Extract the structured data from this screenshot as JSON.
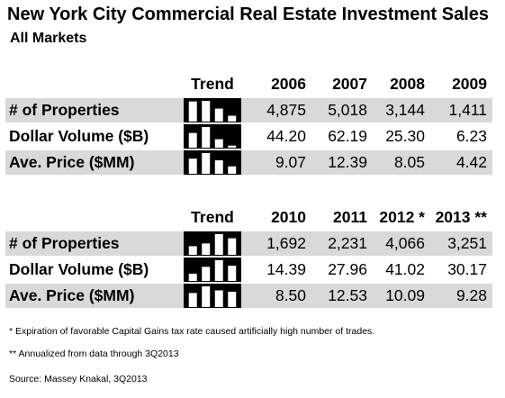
{
  "title": "New York City Commercial Real Estate Investment Sales",
  "subtitle": "All Markets",
  "tables": [
    {
      "trend_label": "Trend",
      "years": [
        "2006",
        "2007",
        "2008",
        "2009"
      ],
      "rows": [
        {
          "label": "# of Properties",
          "values": [
            "4,875",
            "5,018",
            "3,144",
            "1,411"
          ],
          "series": [
            4875,
            5018,
            3144,
            1411
          ]
        },
        {
          "label": "Dollar Volume ($B)",
          "values": [
            "44.20",
            "62.19",
            "25.30",
            "6.23"
          ],
          "series": [
            44.2,
            62.19,
            25.3,
            6.23
          ]
        },
        {
          "label": "Ave. Price ($MM)",
          "values": [
            "9.07",
            "12.39",
            "8.05",
            "4.42"
          ],
          "series": [
            9.07,
            12.39,
            8.05,
            4.42
          ]
        }
      ]
    },
    {
      "trend_label": "Trend",
      "years": [
        "2010",
        "2011",
        "2012 *",
        "2013 **"
      ],
      "rows": [
        {
          "label": "# of Properties",
          "values": [
            "1,692",
            "2,231",
            "4,066",
            "3,251"
          ],
          "series": [
            1692,
            2231,
            4066,
            3251
          ]
        },
        {
          "label": "Dollar Volume ($B)",
          "values": [
            "14.39",
            "27.96",
            "41.02",
            "30.17"
          ],
          "series": [
            14.39,
            27.96,
            41.02,
            30.17
          ]
        },
        {
          "label": "Ave. Price ($MM)",
          "values": [
            "8.50",
            "12.53",
            "10.09",
            "9.28"
          ],
          "series": [
            8.5,
            12.53,
            10.09,
            9.28
          ]
        }
      ]
    }
  ],
  "notes": [
    "* Expiration of favorable Capital Gains tax rate caused artificially high number of trades.",
    "** Annualized from data through 3Q2013",
    "Source: Massey Knakal, 3Q2013"
  ],
  "colors": {
    "shade": "#d9d9d9",
    "trend_bg": "#000000",
    "trend_bar": "#ffffff"
  },
  "chart_data": [
    {
      "type": "table",
      "columns": [
        "Trend",
        "2006",
        "2007",
        "2008",
        "2009"
      ],
      "rows": [
        {
          "label": "# of Properties",
          "values": [
            4875,
            5018,
            3144,
            1411
          ]
        },
        {
          "label": "Dollar Volume ($B)",
          "values": [
            44.2,
            62.19,
            25.3,
            6.23
          ]
        },
        {
          "label": "Ave. Price ($MM)",
          "values": [
            9.07,
            12.39,
            8.05,
            4.42
          ]
        }
      ]
    },
    {
      "type": "table",
      "columns": [
        "Trend",
        "2010",
        "2011",
        "2012 *",
        "2013 **"
      ],
      "rows": [
        {
          "label": "# of Properties",
          "values": [
            1692,
            2231,
            4066,
            3251
          ]
        },
        {
          "label": "Dollar Volume ($B)",
          "values": [
            14.39,
            27.96,
            41.02,
            30.17
          ]
        },
        {
          "label": "Ave. Price ($MM)",
          "values": [
            8.5,
            12.53,
            10.09,
            9.28
          ]
        }
      ]
    }
  ]
}
